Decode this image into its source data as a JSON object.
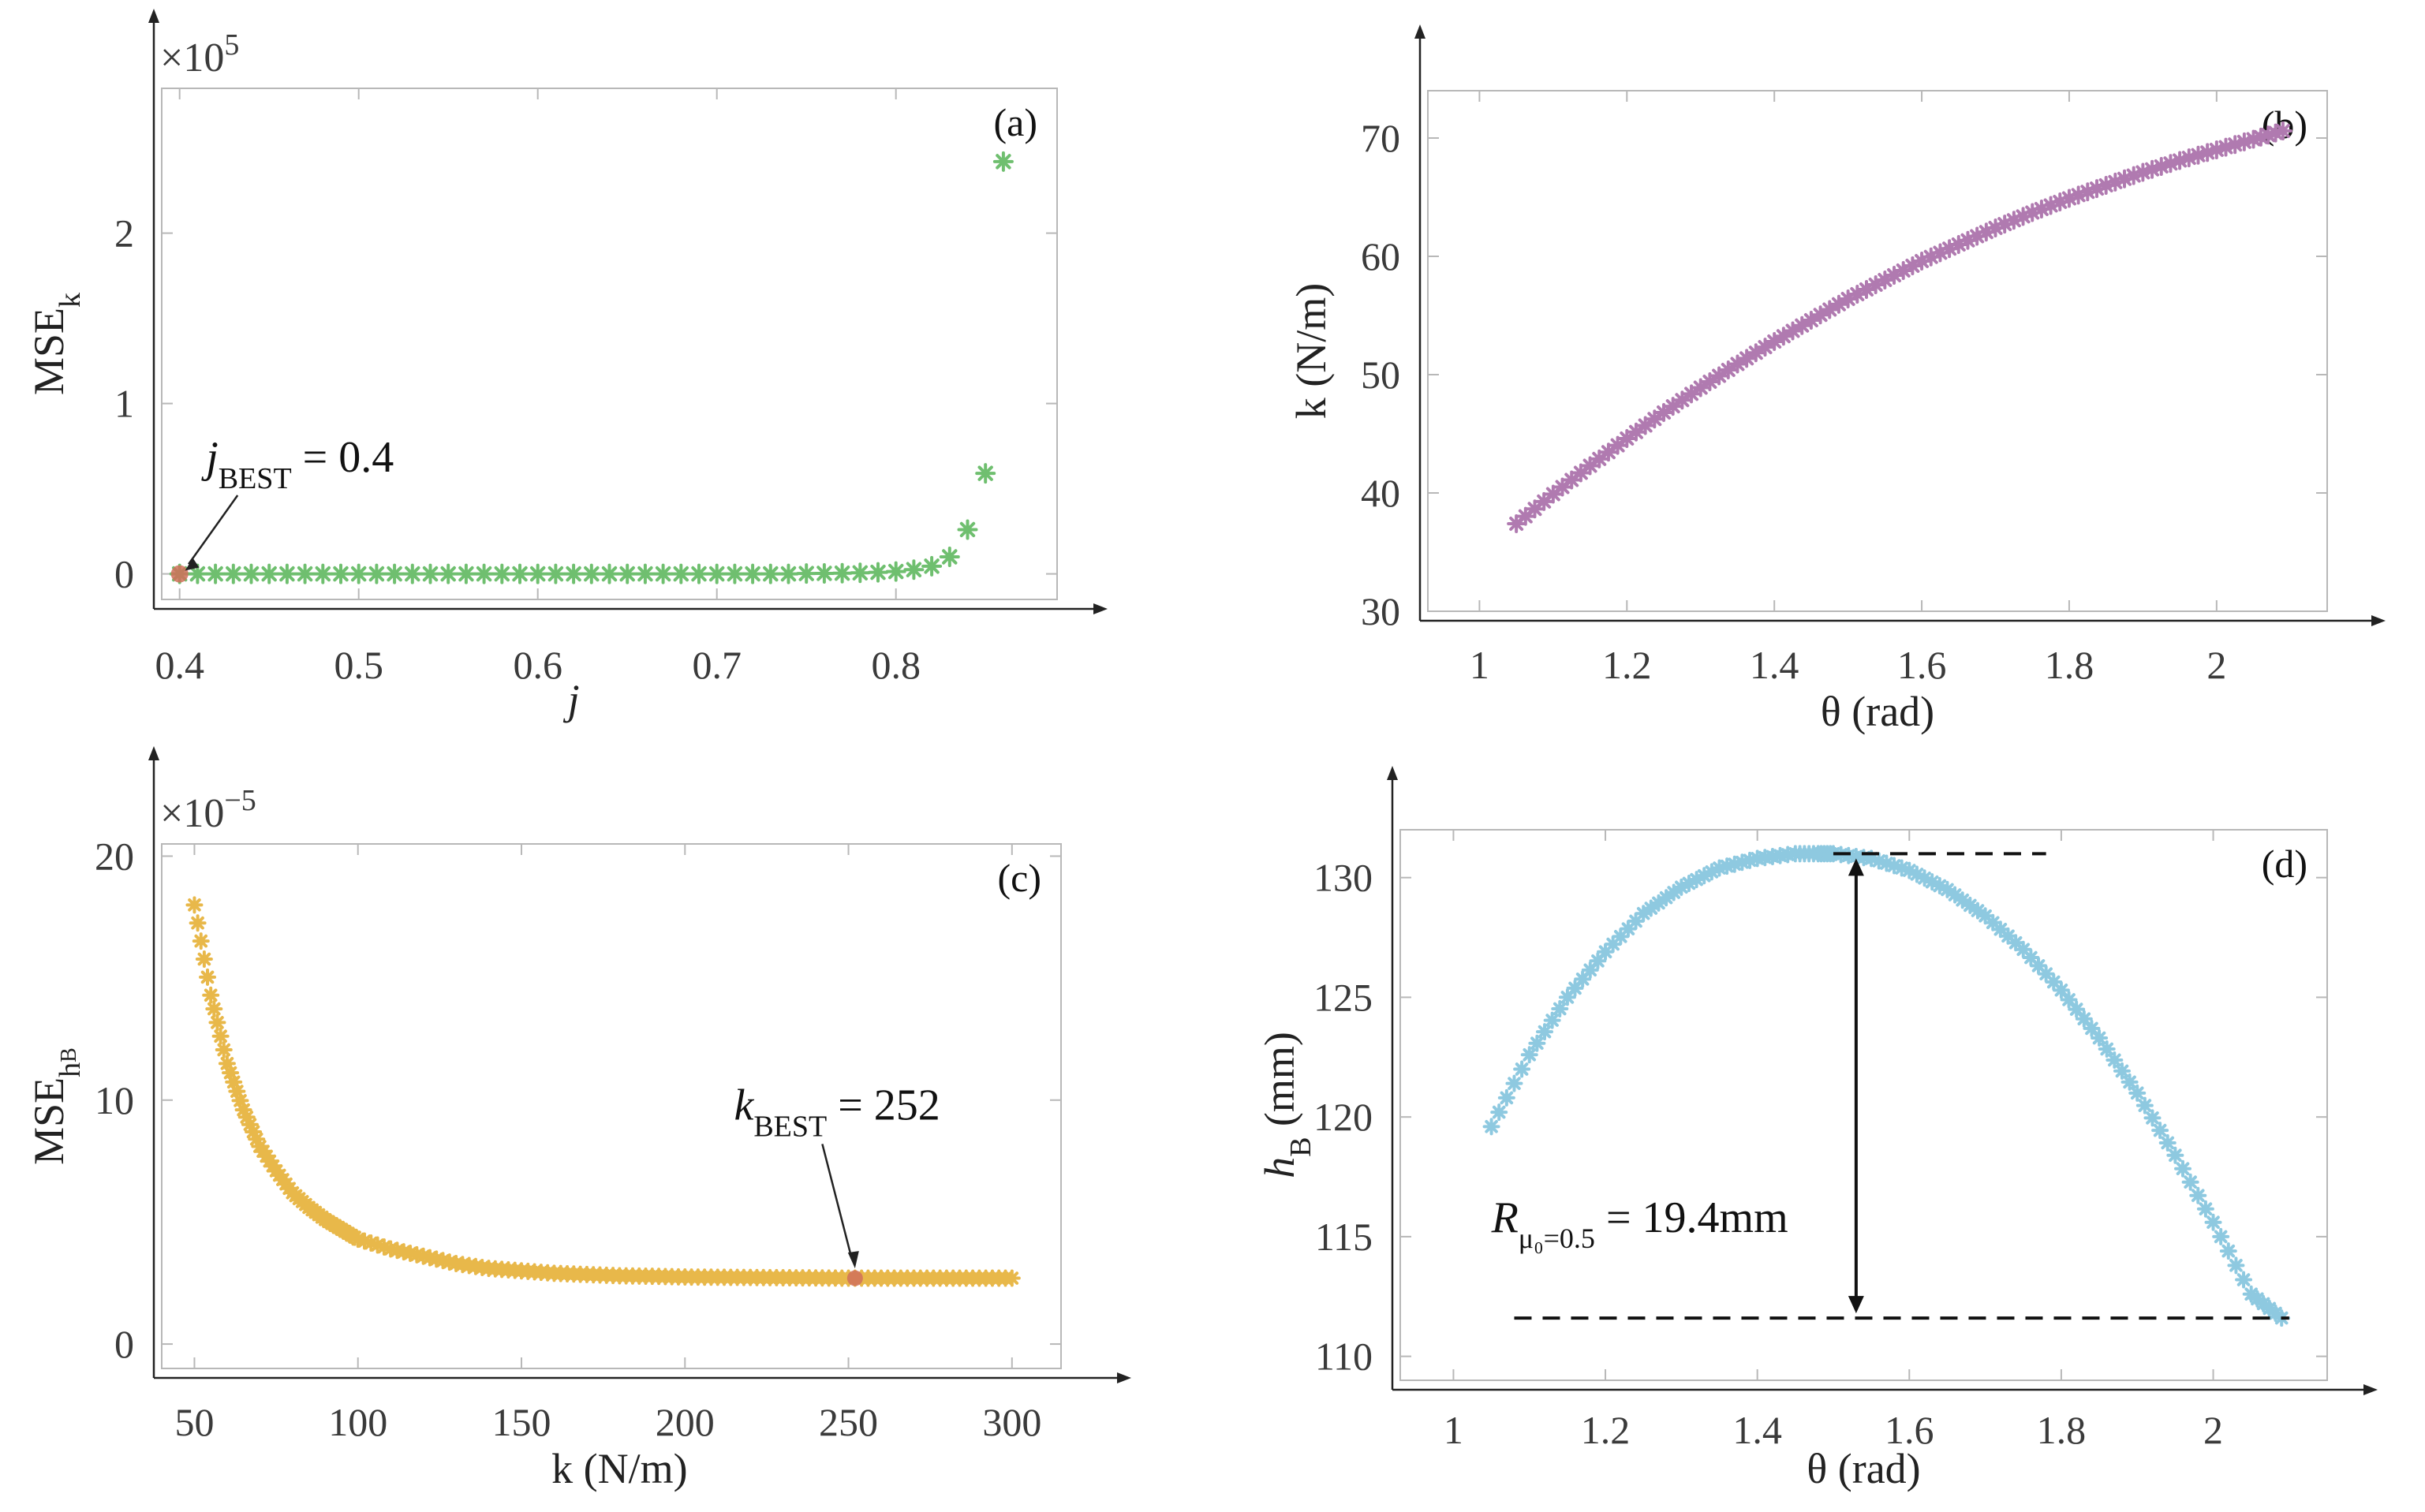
{
  "chart_data": [
    {
      "id": "a",
      "type": "scatter",
      "panel_label": "(a)",
      "xlabel": "j",
      "ylabel": "MSE",
      "ylabel_sub": "k",
      "y_multiplier": "×10",
      "y_multiplier_exp": "5",
      "xlim": [
        0.39,
        0.89
      ],
      "ylim": [
        -0.15,
        2.85
      ],
      "xticks": [
        "0.4",
        "0.5",
        "0.6",
        "0.7",
        "0.8"
      ],
      "yticks": [
        "0",
        "1",
        "2"
      ],
      "grid": false,
      "marker_color": "#6fbf6f",
      "highlight_color": "#d0705a",
      "series": [
        {
          "name": "MSE_k (×10^5)",
          "x": [
            0.4,
            0.41,
            0.42,
            0.43,
            0.44,
            0.45,
            0.46,
            0.47,
            0.48,
            0.49,
            0.5,
            0.51,
            0.52,
            0.53,
            0.54,
            0.55,
            0.56,
            0.57,
            0.58,
            0.59,
            0.6,
            0.61,
            0.62,
            0.63,
            0.64,
            0.65,
            0.66,
            0.67,
            0.68,
            0.69,
            0.7,
            0.71,
            0.72,
            0.73,
            0.74,
            0.75,
            0.76,
            0.77,
            0.78,
            0.79,
            0.8,
            0.81,
            0.82,
            0.83,
            0.84,
            0.85,
            0.86
          ],
          "y": [
            0,
            0,
            0,
            0,
            0,
            0,
            0,
            0,
            0,
            0,
            0,
            0,
            0,
            0,
            0,
            0,
            0,
            0,
            0,
            0,
            0,
            0,
            0,
            0,
            0,
            0,
            0,
            0,
            0,
            0,
            0,
            0,
            0,
            0,
            0,
            0.002,
            0.003,
            0.004,
            0.006,
            0.009,
            0.014,
            0.025,
            0.045,
            0.1,
            0.26,
            0.59,
            2.42
          ]
        }
      ],
      "highlight": {
        "x": 0.4,
        "y": 0
      },
      "annotation": {
        "text": "j",
        "sub": "BEST",
        "value": " = 0.4"
      }
    },
    {
      "id": "b",
      "type": "scatter",
      "panel_label": "(b)",
      "xlabel": "θ (rad)",
      "ylabel": "k (N/m)",
      "xlim": [
        0.93,
        2.15
      ],
      "ylim": [
        30,
        74
      ],
      "xticks": [
        "1",
        "1.2",
        "1.4",
        "1.6",
        "1.8",
        "2"
      ],
      "yticks": [
        "30",
        "40",
        "50",
        "60",
        "70"
      ],
      "grid": false,
      "marker_color": "#b07ab0",
      "series": [
        {
          "name": "k vs theta",
          "x": [
            1.05,
            1.1,
            1.15,
            1.2,
            1.25,
            1.3,
            1.35,
            1.4,
            1.45,
            1.5,
            1.55,
            1.6,
            1.65,
            1.7,
            1.75,
            1.8,
            1.85,
            1.9,
            1.95,
            2.0,
            2.05,
            2.09
          ],
          "y": [
            37.4,
            39.9,
            42.3,
            44.6,
            46.8,
            48.9,
            50.9,
            52.8,
            54.6,
            56.4,
            58.0,
            59.6,
            61.0,
            62.4,
            63.7,
            64.9,
            66.0,
            67.1,
            68.1,
            69.0,
            69.9,
            70.6
          ]
        }
      ]
    },
    {
      "id": "c",
      "type": "scatter",
      "panel_label": "(c)",
      "xlabel": "k (N/m)",
      "ylabel": "MSE",
      "ylabel_sub": "h",
      "ylabel_subsub": "B",
      "y_multiplier": "×10",
      "y_multiplier_exp": "−5",
      "xlim": [
        40,
        315
      ],
      "ylim": [
        -1,
        20.5
      ],
      "xticks": [
        "50",
        "100",
        "150",
        "200",
        "250",
        "300"
      ],
      "yticks": [
        "0",
        "10",
        "20"
      ],
      "grid": false,
      "marker_color": "#e8b84a",
      "highlight_color": "#d0705a",
      "series": [
        {
          "name": "MSE_hB (×10^-5)",
          "x": [
            50,
            55,
            60,
            65,
            70,
            75,
            80,
            85,
            90,
            95,
            100,
            110,
            120,
            130,
            140,
            150,
            160,
            170,
            180,
            190,
            200,
            210,
            220,
            230,
            240,
            250,
            260,
            270,
            280,
            290,
            300
          ],
          "y": [
            18.0,
            14.3,
            11.5,
            9.6,
            8.1,
            7.1,
            6.2,
            5.6,
            5.1,
            4.7,
            4.3,
            3.9,
            3.6,
            3.3,
            3.1,
            3.0,
            2.9,
            2.85,
            2.8,
            2.78,
            2.75,
            2.74,
            2.73,
            2.72,
            2.71,
            2.7,
            2.7,
            2.7,
            2.7,
            2.7,
            2.7
          ]
        }
      ],
      "highlight": {
        "x": 252,
        "y": 2.7
      },
      "annotation": {
        "text": "k",
        "sub": "BEST",
        "value": " = 252"
      }
    },
    {
      "id": "d",
      "type": "scatter",
      "panel_label": "(d)",
      "xlabel": "θ (rad)",
      "ylabel": "h",
      "ylabel_sub": "B",
      "ylabel_unit": " (mm)",
      "xlim": [
        0.93,
        2.15
      ],
      "ylim": [
        109,
        132
      ],
      "xticks": [
        "1",
        "1.2",
        "1.4",
        "1.6",
        "1.8",
        "2"
      ],
      "yticks": [
        "110",
        "115",
        "120",
        "125",
        "130"
      ],
      "grid": false,
      "marker_color": "#8ec9e0",
      "series": [
        {
          "name": "h_B vs theta",
          "x": [
            1.05,
            1.1,
            1.15,
            1.2,
            1.25,
            1.3,
            1.35,
            1.4,
            1.45,
            1.48,
            1.5,
            1.55,
            1.6,
            1.65,
            1.7,
            1.75,
            1.8,
            1.85,
            1.9,
            1.95,
            2.0,
            2.05,
            2.09
          ],
          "y": [
            119.6,
            122.6,
            125.0,
            126.9,
            128.5,
            129.6,
            130.4,
            130.8,
            131.0,
            131.0,
            131.0,
            130.8,
            130.3,
            129.5,
            128.4,
            127.0,
            125.3,
            123.3,
            121.0,
            118.4,
            115.6,
            112.6,
            111.6
          ]
        }
      ],
      "reference_lines": {
        "upper": 131.0,
        "lower": 111.6
      },
      "annotation": {
        "text": "R",
        "sub": "μ₀=0.5",
        "value": " = 19.4mm"
      }
    }
  ]
}
